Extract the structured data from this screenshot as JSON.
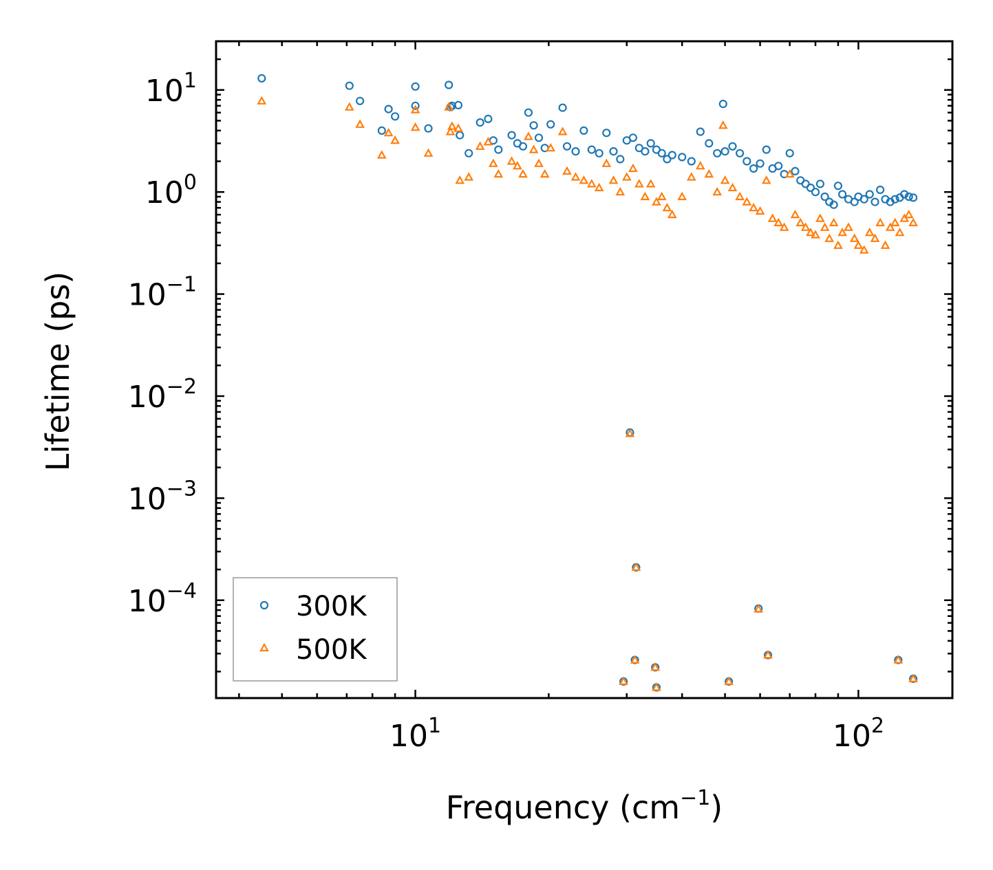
{
  "chart_data": {
    "type": "scatter",
    "title": "",
    "xlabel": "Frequency (cm",
    "xlabel_sup": "−1",
    "xlabel_suffix": ")",
    "ylabel": "Lifetime (ps)",
    "xscale": "log",
    "yscale": "log",
    "xlim": [
      3.55,
      163
    ],
    "ylim": [
      1.1e-05,
      30
    ],
    "grid": false,
    "legend_position": "lower-left",
    "x_ticks": [
      {
        "base": "10",
        "exp": "1",
        "value": 10
      },
      {
        "base": "10",
        "exp": "2",
        "value": 100
      }
    ],
    "y_ticks": [
      {
        "base": "10",
        "exp": "1",
        "value": 10
      },
      {
        "base": "10",
        "exp": "0",
        "value": 1
      },
      {
        "base": "10",
        "exp": "−1",
        "value": 0.1
      },
      {
        "base": "10",
        "exp": "−2",
        "value": 0.01
      },
      {
        "base": "10",
        "exp": "−3",
        "value": 0.001
      },
      {
        "base": "10",
        "exp": "−4",
        "value": 0.0001
      }
    ],
    "series": [
      {
        "name": "300K",
        "marker": "circle",
        "color": "#1f77b4",
        "x": [
          4.5,
          7.1,
          7.5,
          8.4,
          8.7,
          9.0,
          10.0,
          10.0,
          10.7,
          11.9,
          12.0,
          12.1,
          12.5,
          12.6,
          13.2,
          14.0,
          14.6,
          15.0,
          15.4,
          16.5,
          17.0,
          17.5,
          18.0,
          18.5,
          19.0,
          19.6,
          20.2,
          21.5,
          22.0,
          23.0,
          24.0,
          25.0,
          26.0,
          27.0,
          28.0,
          29.0,
          30.0,
          31.0,
          32.0,
          33.0,
          34.0,
          35.0,
          36.0,
          37.0,
          38.0,
          40.0,
          42.0,
          44.0,
          46.0,
          48.0,
          49.5,
          50.0,
          52.0,
          54.0,
          56.0,
          58.0,
          60.0,
          62.0,
          64.0,
          66.0,
          68.0,
          70.0,
          72.0,
          74.0,
          76.0,
          78.0,
          80.0,
          82.0,
          84.0,
          86.0,
          88.0,
          90.0,
          92.0,
          95.0,
          98.0,
          100.0,
          103.0,
          106.0,
          109.0,
          112.0,
          115.0,
          118.0,
          121.0,
          124.0,
          127.0,
          130.0,
          133.0,
          30.5,
          31.5,
          59.5,
          29.5,
          31.3,
          35.0,
          51.0,
          34.8,
          62.5,
          123.0,
          133.0
        ],
        "y": [
          13.0,
          11.0,
          7.8,
          4.0,
          6.5,
          5.5,
          10.8,
          7.0,
          4.2,
          11.2,
          6.8,
          7.0,
          7.1,
          3.6,
          2.4,
          4.8,
          5.2,
          3.2,
          2.6,
          3.6,
          3.0,
          2.8,
          6.0,
          4.5,
          3.4,
          2.7,
          4.6,
          6.7,
          2.8,
          2.5,
          4.0,
          2.6,
          2.4,
          3.8,
          2.5,
          2.1,
          3.2,
          3.4,
          2.7,
          2.5,
          3.0,
          2.6,
          2.4,
          2.1,
          2.3,
          2.2,
          2.0,
          3.9,
          3.0,
          2.4,
          7.3,
          2.5,
          2.8,
          2.4,
          2.0,
          1.7,
          1.9,
          2.6,
          1.7,
          1.8,
          1.5,
          2.4,
          1.6,
          1.3,
          1.2,
          1.1,
          1.0,
          1.2,
          0.9,
          0.8,
          0.75,
          1.15,
          0.95,
          0.85,
          0.8,
          0.9,
          0.85,
          0.95,
          0.8,
          1.05,
          0.85,
          0.8,
          0.85,
          0.88,
          0.95,
          0.9,
          0.88,
          0.0044,
          0.00021,
          8.3e-05,
          1.6e-05,
          2.6e-05,
          1.4e-05,
          1.6e-05,
          2.2e-05,
          2.9e-05,
          2.6e-05,
          1.7e-05
        ]
      },
      {
        "name": "500K",
        "marker": "triangle",
        "color": "#ff7f0e",
        "x": [
          4.5,
          7.1,
          7.5,
          8.4,
          8.7,
          9.0,
          10.0,
          10.0,
          10.7,
          11.9,
          12.0,
          12.1,
          12.5,
          12.6,
          13.2,
          14.0,
          14.6,
          15.0,
          15.4,
          16.5,
          17.0,
          17.5,
          18.0,
          18.5,
          19.0,
          19.6,
          20.2,
          21.5,
          22.0,
          23.0,
          24.0,
          25.0,
          26.0,
          27.0,
          28.0,
          29.0,
          30.0,
          31.0,
          32.0,
          33.0,
          34.0,
          35.0,
          36.0,
          37.0,
          38.0,
          40.0,
          42.0,
          44.0,
          46.0,
          48.0,
          49.5,
          50.0,
          52.0,
          54.0,
          56.0,
          58.0,
          60.0,
          62.0,
          64.0,
          66.0,
          68.0,
          70.0,
          72.0,
          74.0,
          76.0,
          78.0,
          80.0,
          82.0,
          84.0,
          86.0,
          88.0,
          90.0,
          92.0,
          95.0,
          98.0,
          100.0,
          103.0,
          106.0,
          109.0,
          112.0,
          115.0,
          118.0,
          121.0,
          124.0,
          127.0,
          130.0,
          133.0,
          30.5,
          31.5,
          59.5,
          29.5,
          31.3,
          35.0,
          51.0,
          34.8,
          62.5,
          123.0,
          133.0
        ],
        "y": [
          7.8,
          6.8,
          4.6,
          2.3,
          3.8,
          3.2,
          6.4,
          4.3,
          2.4,
          6.8,
          3.9,
          4.4,
          4.2,
          1.3,
          1.4,
          2.8,
          3.1,
          1.9,
          1.5,
          2.0,
          1.8,
          1.5,
          3.5,
          2.6,
          1.9,
          1.5,
          2.7,
          3.9,
          1.6,
          1.4,
          1.3,
          1.2,
          1.1,
          1.9,
          1.3,
          1.0,
          1.4,
          1.7,
          1.2,
          0.9,
          1.2,
          0.8,
          0.9,
          0.7,
          0.6,
          0.9,
          1.4,
          1.8,
          1.5,
          1.0,
          4.5,
          1.3,
          1.1,
          0.9,
          0.8,
          0.7,
          0.65,
          1.3,
          0.55,
          0.5,
          0.45,
          1.5,
          0.6,
          0.5,
          0.45,
          0.4,
          0.38,
          0.55,
          0.45,
          0.35,
          0.5,
          0.3,
          0.4,
          0.45,
          0.35,
          0.3,
          0.27,
          0.4,
          0.35,
          0.5,
          0.3,
          0.45,
          0.5,
          0.4,
          0.55,
          0.6,
          0.5,
          0.0043,
          0.00021,
          8.2e-05,
          1.6e-05,
          2.6e-05,
          1.4e-05,
          1.6e-05,
          2.2e-05,
          2.9e-05,
          2.6e-05,
          1.7e-05
        ]
      }
    ]
  }
}
